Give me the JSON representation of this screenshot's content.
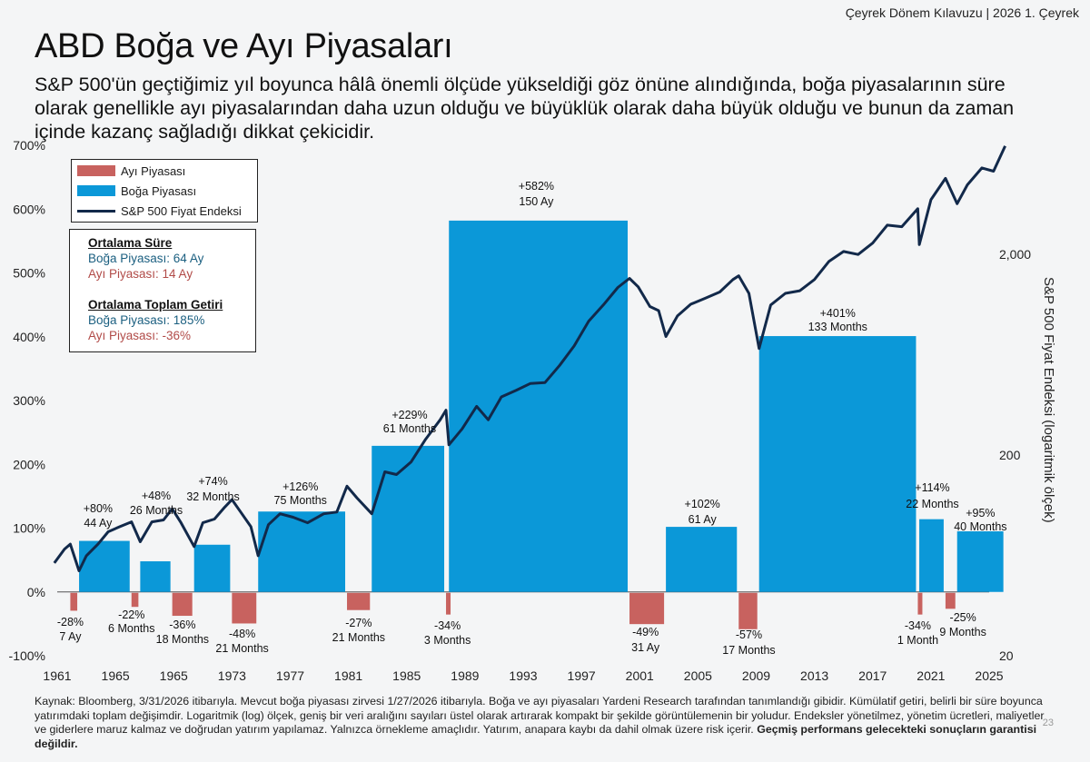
{
  "header": {
    "right_text": "Çeyrek Dönem Kılavuzu | 2026 1. Çeyrek"
  },
  "title": "ABD Boğa ve Ayı Piyasaları",
  "subtitle": "S&P 500'ün geçtiğimiz yıl boyunca hâlâ önemli ölçüde yükseldiği göz önüne alındığında, boğa piyasalarının süre olarak genellikle ayı piyasalarından daha uzun olduğu ve büyüklük olarak daha büyük olduğu ve bunun da zaman içinde kazanç sağladığı dikkat çekicidir.",
  "legend": {
    "bear": "Ayı Piyasası",
    "bull": "Boğa Piyasası",
    "line": "S&P 500 Fiyat Endeksi"
  },
  "stats": {
    "duration_heading": "Ortalama Süre",
    "duration_bull": "Boğa Piyasası: 64 Ay",
    "duration_bear": "Ayı Piyasası: 14 Ay",
    "return_heading": "Ortalama Toplam Getiri",
    "return_bull": "Boğa Piyasası: 185%",
    "return_bear": "Ayı Piyasası: -36%"
  },
  "colors": {
    "bull": "#0b98d8",
    "bear": "#c8625f",
    "line": "#12294a",
    "bull_text": "#1b5f80",
    "bear_text": "#b14b48"
  },
  "chart_data": {
    "type": "bar",
    "left_axis": {
      "ticks": [
        "700%",
        "600%",
        "500%",
        "400%",
        "300%",
        "200%",
        "100%",
        "0%",
        "-100%"
      ],
      "ylim": [
        -100,
        700
      ]
    },
    "right_axis": {
      "label": "S&P 500 Fiyat Endeksi (logaritmik ölçek)",
      "ticks": [
        "2,000",
        "200",
        "20"
      ],
      "scale": "log"
    },
    "x_ticks": [
      "1961",
      "1965",
      "1965",
      "1973",
      "1977",
      "1981",
      "1985",
      "1989",
      "1993",
      "1997",
      "2001",
      "2005",
      "2009",
      "2013",
      "2017",
      "2021",
      "2025"
    ],
    "bull_markets": [
      {
        "start": 1962.5,
        "end": 1966.1,
        "value": 80,
        "label1": "+80%",
        "label2": "44 Ay"
      },
      {
        "start": 1966.7,
        "end": 1968.9,
        "value": 48,
        "label1": "+48%",
        "label2": "26 Months"
      },
      {
        "start": 1970.4,
        "end": 1973.0,
        "value": 74,
        "label1": "+74%",
        "label2": "32 Months"
      },
      {
        "start": 1974.8,
        "end": 1980.9,
        "value": 126,
        "label1": "+126%",
        "label2": "75 Months"
      },
      {
        "start": 1982.6,
        "end": 1987.7,
        "value": 229,
        "label1": "+229%",
        "label2": "61 Months"
      },
      {
        "start": 1987.9,
        "end": 2000.3,
        "value": 582,
        "label1": "+582%",
        "label2": "150 Ay"
      },
      {
        "start": 2002.8,
        "end": 2007.8,
        "value": 102,
        "label1": "+102%",
        "label2": "61 Ay"
      },
      {
        "start": 2009.2,
        "end": 2020.1,
        "value": 401,
        "label1": "+401%",
        "label2": "133 Months"
      },
      {
        "start": 2020.2,
        "end": 2022.0,
        "value": 114,
        "label1": "+114%",
        "label2": "22 Months"
      },
      {
        "start": 2022.8,
        "end": 2026.1,
        "value": 95,
        "label1": "+95%",
        "label2": "40 Months"
      }
    ],
    "bear_markets": [
      {
        "start": 1961.9,
        "end": 1962.5,
        "value": -28,
        "label1": "-28%",
        "label2": "7 Ay"
      },
      {
        "start": 1966.1,
        "end": 1966.7,
        "value": -22,
        "label1": "-22%",
        "label2": "6 Months"
      },
      {
        "start": 1968.9,
        "end": 1970.4,
        "value": -36,
        "label1": "-36%",
        "label2": "18 Months"
      },
      {
        "start": 1973.0,
        "end": 1974.8,
        "value": -48,
        "label1": "-48%",
        "label2": "21 Months"
      },
      {
        "start": 1980.9,
        "end": 1982.6,
        "value": -27,
        "label1": "-27%",
        "label2": "21 Months"
      },
      {
        "start": 1987.7,
        "end": 1987.9,
        "value": -34,
        "label1": "-34%",
        "label2": "3 Months"
      },
      {
        "start": 2000.3,
        "end": 2002.8,
        "value": -49,
        "label1": "-49%",
        "label2": "31 Ay"
      },
      {
        "start": 2007.8,
        "end": 2009.2,
        "value": -57,
        "label1": "-57%",
        "label2": "17 Months"
      },
      {
        "start": 2020.1,
        "end": 2020.2,
        "value": -34,
        "label1": "-34%",
        "label2": "1 Month"
      },
      {
        "start": 2022.0,
        "end": 2022.8,
        "value": -25,
        "label1": "-25%",
        "label2": "9 Months"
      }
    ],
    "sp500_line": [
      [
        1960.8,
        58
      ],
      [
        1961.5,
        68
      ],
      [
        1961.9,
        72
      ],
      [
        1962.5,
        53
      ],
      [
        1963.0,
        63
      ],
      [
        1963.8,
        72
      ],
      [
        1964.5,
        83
      ],
      [
        1965.3,
        88
      ],
      [
        1966.1,
        93
      ],
      [
        1966.7,
        74
      ],
      [
        1967.5,
        93
      ],
      [
        1968.3,
        95
      ],
      [
        1968.9,
        108
      ],
      [
        1969.5,
        92
      ],
      [
        1970.4,
        70
      ],
      [
        1971.0,
        92
      ],
      [
        1971.8,
        96
      ],
      [
        1972.5,
        110
      ],
      [
        1973.0,
        120
      ],
      [
        1973.6,
        104
      ],
      [
        1974.3,
        88
      ],
      [
        1974.8,
        63
      ],
      [
        1975.5,
        90
      ],
      [
        1976.3,
        102
      ],
      [
        1977.2,
        98
      ],
      [
        1978.2,
        92
      ],
      [
        1979.3,
        102
      ],
      [
        1980.2,
        104
      ],
      [
        1980.9,
        140
      ],
      [
        1981.6,
        122
      ],
      [
        1982.6,
        102
      ],
      [
        1983.5,
        165
      ],
      [
        1984.3,
        160
      ],
      [
        1985.3,
        185
      ],
      [
        1986.3,
        240
      ],
      [
        1987.3,
        300
      ],
      [
        1987.7,
        335
      ],
      [
        1987.9,
        225
      ],
      [
        1988.8,
        270
      ],
      [
        1989.8,
        350
      ],
      [
        1990.6,
        300
      ],
      [
        1991.5,
        390
      ],
      [
        1992.5,
        420
      ],
      [
        1993.5,
        455
      ],
      [
        1994.5,
        460
      ],
      [
        1995.5,
        560
      ],
      [
        1996.5,
        700
      ],
      [
        1997.5,
        930
      ],
      [
        1998.5,
        1120
      ],
      [
        1999.5,
        1370
      ],
      [
        2000.3,
        1520
      ],
      [
        2000.9,
        1380
      ],
      [
        2001.7,
        1100
      ],
      [
        2002.3,
        1050
      ],
      [
        2002.8,
        780
      ],
      [
        2003.6,
        990
      ],
      [
        2004.5,
        1130
      ],
      [
        2005.5,
        1210
      ],
      [
        2006.5,
        1300
      ],
      [
        2007.4,
        1500
      ],
      [
        2007.8,
        1565
      ],
      [
        2008.5,
        1280
      ],
      [
        2009.2,
        680
      ],
      [
        2010.0,
        1120
      ],
      [
        2011.0,
        1280
      ],
      [
        2012.0,
        1320
      ],
      [
        2013.0,
        1500
      ],
      [
        2014.0,
        1850
      ],
      [
        2015.0,
        2070
      ],
      [
        2016.0,
        2000
      ],
      [
        2017.0,
        2280
      ],
      [
        2018.0,
        2800
      ],
      [
        2019.0,
        2750
      ],
      [
        2020.1,
        3380
      ],
      [
        2020.2,
        2240
      ],
      [
        2021.0,
        3750
      ],
      [
        2022.0,
        4790
      ],
      [
        2022.8,
        3580
      ],
      [
        2023.5,
        4450
      ],
      [
        2024.5,
        5400
      ],
      [
        2025.3,
        5200
      ],
      [
        2026.1,
        6950
      ]
    ]
  },
  "footnote": {
    "text": "Kaynak: Bloomberg, 3/31/2026 itibarıyla. Mevcut boğa piyasası zirvesi 1/27/2026 itibarıyla. Boğa ve ayı piyasaları Yardeni Research tarafından tanımlandığı gibidir. Kümülatif getiri, belirli bir süre boyunca yatırımdaki toplam değişimdir. Logaritmik (log) ölçek, geniş bir veri aralığını sayıları üstel olarak artırarak kompakt bir şekilde görüntülemenin bir yoludur. Endeksler yönetilmez, yönetim ücretleri, maliyetler ve giderlere maruz kalmaz ve doğrudan yatırım yapılamaz. Yalnızca örnekleme amaçlıdır. Yatırım, anapara kaybı da dahil olmak üzere risk içerir.",
    "bold": "Geçmiş performans gelecekteki sonuçların garantisi değildir."
  },
  "page_number": "23"
}
